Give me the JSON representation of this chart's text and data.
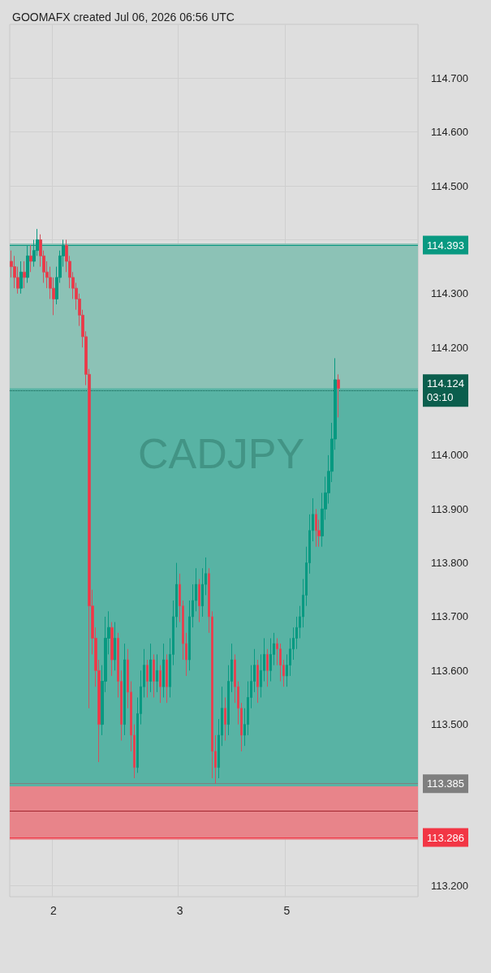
{
  "chart_data": {
    "type": "candlestick",
    "title": "GOOMAFX created Jul 06, 2026 06:56 UTC",
    "subtitle": "CADJPY",
    "categories": [
      null,
      null,
      null,
      null,
      null,
      null,
      null,
      null,
      null,
      null,
      null,
      null,
      null,
      "2",
      null,
      null,
      null,
      null,
      null,
      null,
      null,
      null,
      null,
      null,
      null,
      null,
      null,
      null,
      null,
      null,
      null,
      null,
      null,
      null,
      null,
      null,
      null,
      null,
      null,
      null,
      null,
      null,
      null,
      null,
      null,
      null,
      null,
      null,
      null,
      null,
      null,
      null,
      "3",
      null,
      null,
      null,
      null,
      null,
      null,
      null,
      null,
      null,
      null,
      null,
      null,
      null,
      null,
      null,
      null,
      null,
      null,
      null,
      null,
      null,
      null,
      null,
      null,
      null,
      null,
      null,
      null,
      null,
      null,
      null,
      null,
      "5",
      null,
      null,
      null,
      null,
      null,
      null,
      null,
      null,
      null,
      null,
      null,
      null,
      null,
      null,
      null,
      null,
      null,
      null,
      null,
      null,
      null,
      null,
      null,
      null,
      null,
      null,
      null,
      null,
      null,
      null,
      null,
      null,
      null,
      null,
      null,
      null,
      null,
      null,
      null,
      null
    ],
    "ohlc": [
      [
        114.36,
        114.38,
        114.33,
        114.35
      ],
      [
        114.35,
        114.37,
        114.31,
        114.33
      ],
      [
        114.33,
        114.35,
        114.3,
        114.31
      ],
      [
        114.31,
        114.36,
        114.3,
        114.34
      ],
      [
        114.34,
        114.36,
        114.31,
        114.33
      ],
      [
        114.33,
        114.39,
        114.32,
        114.37
      ],
      [
        114.37,
        114.39,
        114.34,
        114.36
      ],
      [
        114.36,
        114.4,
        114.35,
        114.38
      ],
      [
        114.38,
        114.42,
        114.37,
        114.4
      ],
      [
        114.4,
        114.41,
        114.35,
        114.37
      ],
      [
        114.37,
        114.38,
        114.32,
        114.34
      ],
      [
        114.34,
        114.36,
        114.31,
        114.33
      ],
      [
        114.33,
        114.35,
        114.29,
        114.31
      ],
      [
        114.31,
        114.33,
        114.26,
        114.29
      ],
      [
        114.29,
        114.35,
        114.28,
        114.33
      ],
      [
        114.33,
        114.38,
        114.32,
        114.37
      ],
      [
        114.37,
        114.4,
        114.35,
        114.39
      ],
      [
        114.39,
        114.4,
        114.34,
        114.36
      ],
      [
        114.36,
        114.37,
        114.31,
        114.33
      ],
      [
        114.33,
        114.34,
        114.29,
        114.31
      ],
      [
        114.31,
        114.32,
        114.27,
        114.29
      ],
      [
        114.29,
        114.3,
        114.24,
        114.26
      ],
      [
        114.26,
        114.27,
        114.2,
        114.22
      ],
      [
        114.22,
        114.23,
        114.13,
        114.15
      ],
      [
        114.15,
        114.16,
        113.53,
        113.72
      ],
      [
        113.72,
        113.75,
        113.63,
        113.66
      ],
      [
        113.66,
        113.68,
        113.57,
        113.6
      ],
      [
        113.6,
        113.62,
        113.43,
        113.5
      ],
      [
        113.5,
        113.61,
        113.48,
        113.58
      ],
      [
        113.58,
        113.7,
        113.56,
        113.66
      ],
      [
        113.66,
        113.71,
        113.63,
        113.68
      ],
      [
        113.68,
        113.69,
        113.59,
        113.62
      ],
      [
        113.62,
        113.69,
        113.6,
        113.66
      ],
      [
        113.66,
        113.67,
        113.55,
        113.58
      ],
      [
        113.58,
        113.6,
        113.47,
        113.5
      ],
      [
        113.5,
        113.65,
        113.48,
        113.62
      ],
      [
        113.62,
        113.64,
        113.53,
        113.56
      ],
      [
        113.56,
        113.58,
        113.45,
        113.48
      ],
      [
        113.48,
        113.5,
        113.4,
        113.42
      ],
      [
        113.42,
        113.55,
        113.41,
        113.52
      ],
      [
        113.52,
        113.6,
        113.5,
        113.57
      ],
      [
        113.57,
        113.64,
        113.55,
        113.61
      ],
      [
        113.61,
        113.62,
        113.55,
        113.58
      ],
      [
        113.58,
        113.65,
        113.56,
        113.62
      ],
      [
        113.62,
        113.63,
        113.55,
        113.58
      ],
      [
        113.58,
        113.63,
        113.56,
        113.6
      ],
      [
        113.6,
        113.61,
        113.54,
        113.57
      ],
      [
        113.57,
        113.65,
        113.55,
        113.62
      ],
      [
        113.62,
        113.63,
        113.54,
        113.57
      ],
      [
        113.57,
        113.66,
        113.55,
        113.63
      ],
      [
        113.63,
        113.73,
        113.61,
        113.7
      ],
      [
        113.7,
        113.8,
        113.68,
        113.76
      ],
      [
        113.76,
        113.78,
        113.69,
        113.72
      ],
      [
        113.72,
        113.73,
        113.62,
        113.65
      ],
      [
        113.65,
        113.67,
        113.59,
        113.62
      ],
      [
        113.62,
        113.73,
        113.6,
        113.7
      ],
      [
        113.7,
        113.76,
        113.68,
        113.73
      ],
      [
        113.73,
        113.79,
        113.71,
        113.76
      ],
      [
        113.76,
        113.77,
        113.69,
        113.72
      ],
      [
        113.72,
        113.79,
        113.7,
        113.76
      ],
      [
        113.76,
        113.81,
        113.74,
        113.78
      ],
      [
        113.78,
        113.79,
        113.67,
        113.7
      ],
      [
        113.7,
        113.71,
        113.4,
        113.45
      ],
      [
        113.45,
        113.48,
        113.39,
        113.42
      ],
      [
        113.42,
        113.51,
        113.4,
        113.48
      ],
      [
        113.48,
        113.57,
        113.46,
        113.53
      ],
      [
        113.53,
        113.55,
        113.47,
        113.5
      ],
      [
        113.5,
        113.61,
        113.48,
        113.58
      ],
      [
        113.58,
        113.65,
        113.56,
        113.62
      ],
      [
        113.62,
        113.63,
        113.54,
        113.57
      ],
      [
        113.57,
        113.58,
        113.5,
        113.53
      ],
      [
        113.53,
        113.54,
        113.45,
        113.48
      ],
      [
        113.48,
        113.53,
        113.46,
        113.5
      ],
      [
        113.5,
        113.58,
        113.48,
        113.55
      ],
      [
        113.55,
        113.61,
        113.53,
        113.58
      ],
      [
        113.58,
        113.64,
        113.56,
        113.61
      ],
      [
        113.61,
        113.62,
        113.54,
        113.57
      ],
      [
        113.57,
        113.63,
        113.55,
        113.6
      ],
      [
        113.6,
        113.66,
        113.58,
        113.63
      ],
      [
        113.63,
        113.64,
        113.57,
        113.6
      ],
      [
        113.6,
        113.66,
        113.58,
        113.63
      ],
      [
        113.63,
        113.67,
        113.61,
        113.65
      ],
      [
        113.65,
        113.66,
        113.61,
        113.64
      ],
      [
        113.64,
        113.65,
        113.58,
        113.61
      ],
      [
        113.61,
        113.62,
        113.57,
        113.59
      ],
      [
        113.59,
        113.63,
        113.57,
        113.61
      ],
      [
        113.61,
        113.66,
        113.59,
        113.64
      ],
      [
        113.64,
        113.68,
        113.62,
        113.66
      ],
      [
        113.66,
        113.7,
        113.64,
        113.68
      ],
      [
        113.68,
        113.72,
        113.66,
        113.7
      ],
      [
        113.7,
        113.77,
        113.68,
        113.74
      ],
      [
        113.74,
        113.83,
        113.72,
        113.8
      ],
      [
        113.8,
        113.89,
        113.78,
        113.86
      ],
      [
        113.86,
        113.92,
        113.84,
        113.89
      ],
      [
        113.89,
        113.9,
        113.83,
        113.86
      ],
      [
        113.86,
        113.88,
        113.83,
        113.85
      ],
      [
        113.85,
        113.93,
        113.83,
        113.9
      ],
      [
        113.9,
        113.96,
        113.88,
        113.93
      ],
      [
        113.93,
        114.0,
        113.91,
        113.97
      ],
      [
        113.97,
        114.06,
        113.95,
        114.03
      ],
      [
        114.03,
        114.18,
        114.01,
        114.14
      ],
      [
        114.14,
        114.15,
        114.07,
        114.124
      ],
      null,
      null,
      null,
      null,
      null,
      null,
      null,
      null,
      null,
      null,
      null,
      null,
      null,
      null,
      null,
      null,
      null,
      null,
      null,
      null,
      null,
      null,
      null,
      null
    ],
    "ylim": [
      113.18,
      114.8
    ],
    "yticks": [
      {
        "value": 113.2,
        "label": "113.200"
      },
      {
        "value": 113.5,
        "label": "113.500"
      },
      {
        "value": 113.6,
        "label": "113.600"
      },
      {
        "value": 113.7,
        "label": "113.700"
      },
      {
        "value": 113.8,
        "label": "113.800"
      },
      {
        "value": 113.9,
        "label": "113.900"
      },
      {
        "value": 114.0,
        "label": "114.000"
      },
      {
        "value": 114.2,
        "label": "114.200"
      },
      {
        "value": 114.3,
        "label": "114.300"
      },
      {
        "value": 114.4,
        "label": null
      },
      {
        "value": 114.5,
        "label": "114.500"
      },
      {
        "value": 114.6,
        "label": "114.600"
      },
      {
        "value": 114.7,
        "label": "114.700"
      }
    ],
    "bands": [
      {
        "axis": "y",
        "from": 113.385,
        "to": 114.393,
        "color": "#8cc2b6"
      },
      {
        "axis": "y",
        "from": 113.385,
        "to": 114.124,
        "color": "#58b3a4"
      },
      {
        "axis": "y",
        "from": 113.286,
        "to": 113.385,
        "color": "#e8848a"
      }
    ],
    "ref_lines": [
      {
        "axis": "y",
        "value": 114.393,
        "label": "114.393",
        "color": "#089981",
        "line_style": "solid"
      },
      {
        "axis": "y",
        "value": 114.124,
        "label": "114.124\n03:10",
        "color": "#0b5e4d",
        "line_style": "dotted"
      },
      {
        "axis": "y",
        "value": 113.385,
        "label": "113.385",
        "color": "#7f7f7f",
        "line_style": "solid"
      },
      {
        "axis": "y",
        "value": 113.286,
        "label": "113.286",
        "color": "#f23645",
        "line_style": "solid"
      },
      {
        "axis": "y",
        "value": 113.337,
        "label": null,
        "color": "#a3262e",
        "line_style": "solid"
      }
    ],
    "grid": true
  }
}
